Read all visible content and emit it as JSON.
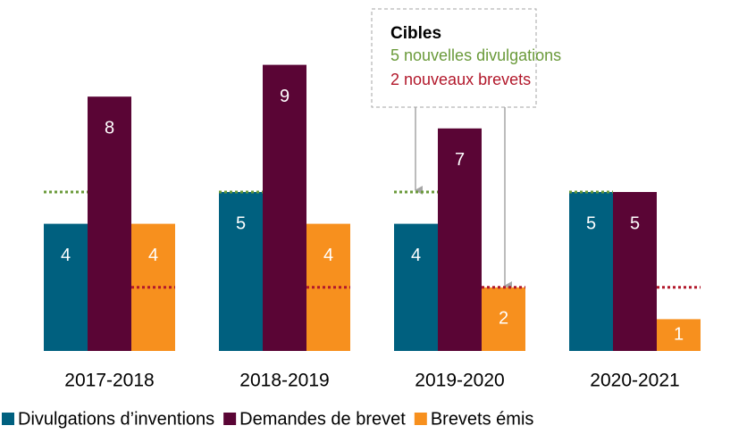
{
  "chart_data": {
    "type": "bar",
    "categories": [
      "2017-2018",
      "2018-2019",
      "2019-2020",
      "2020-2021"
    ],
    "series": [
      {
        "name": "Divulgations d’inventions",
        "color": "#00607f",
        "values": [
          4,
          5,
          4,
          5
        ]
      },
      {
        "name": "Demandes de brevet",
        "color": "#5a0535",
        "values": [
          8,
          9,
          7,
          5
        ]
      },
      {
        "name": "Brevets émis",
        "color": "#f7901e",
        "values": [
          4,
          4,
          2,
          1
        ]
      }
    ],
    "ylim": [
      0,
      10
    ],
    "annotation": {
      "title": "Cibles",
      "lines": [
        {
          "text": "5 nouvelles divulgations",
          "color": "#6a9a3a",
          "value": 5,
          "series": 0
        },
        {
          "text": "2 nouveaux brevets",
          "color": "#b2182b",
          "value": 2,
          "series": 2
        }
      ]
    },
    "legend": "bottom"
  }
}
